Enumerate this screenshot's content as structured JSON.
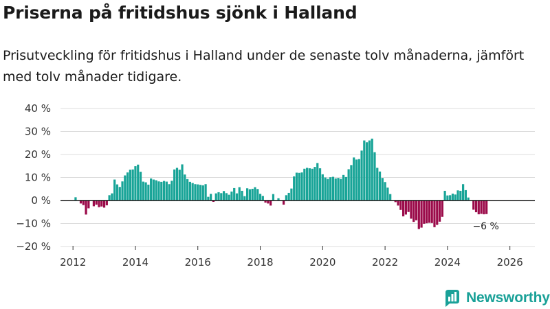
{
  "title": "Priserna på fritidshus sjönk i Halland",
  "subtitle": "Prisutveckling för fritidshus i Halland under de senaste tolv månaderna, jämfört med tolv månader tidigare.",
  "brand": "Newsworthy",
  "colors": {
    "positive": "#18a497",
    "negative": "#9b0b4a",
    "grid": "#dddddd",
    "text": "#333333",
    "brand": "#1aa198"
  },
  "chart_data": {
    "type": "bar",
    "title": "Priserna på fritidshus sjönk i Halland",
    "xlabel": "",
    "ylabel": "",
    "ylim": [
      -20,
      40
    ],
    "yticks": [
      40,
      30,
      20,
      10,
      0,
      -10,
      -20
    ],
    "ytick_labels": [
      "40 %",
      "30 %",
      "20 %",
      "10 %",
      "0 %",
      "−10 %",
      "−20 %"
    ],
    "xlim": [
      2011.6,
      2026.8
    ],
    "xticks": [
      2012,
      2014,
      2016,
      2018,
      2020,
      2022,
      2024,
      2026
    ],
    "xtick_labels": [
      "2012",
      "2014",
      "2016",
      "2018",
      "2020",
      "2022",
      "2024",
      "2026"
    ],
    "start_year": 2012,
    "start_month": 1,
    "values": [
      0,
      1.4,
      0,
      -1.3,
      -2.0,
      -6.1,
      -3.4,
      0,
      -2.5,
      -1.8,
      -2.9,
      -2.6,
      -3.1,
      -2.1,
      2.3,
      3.1,
      9.1,
      7.0,
      5.9,
      8.3,
      10.9,
      12.2,
      13.4,
      13.5,
      14.9,
      15.6,
      12.5,
      8.2,
      7.9,
      6.9,
      9.6,
      9.1,
      8.8,
      8.3,
      8.1,
      8.5,
      8.2,
      7.1,
      8.6,
      13.5,
      14.2,
      13.4,
      15.7,
      11.3,
      9.3,
      8.1,
      7.6,
      7.1,
      7.0,
      6.8,
      6.6,
      7.1,
      1.6,
      2.9,
      -0.6,
      3.1,
      3.6,
      3.2,
      4.1,
      3.2,
      2.5,
      3.9,
      5.4,
      3.1,
      5.8,
      4.2,
      1.9,
      5.3,
      4.9,
      5.1,
      5.8,
      5.0,
      2.9,
      2.0,
      -0.9,
      -1.3,
      -2.2,
      2.8,
      0,
      1.0,
      0,
      -1.8,
      2.3,
      3.3,
      5.2,
      10.5,
      12.1,
      12.0,
      12.2,
      13.8,
      14.2,
      14.0,
      13.8,
      14.6,
      16.3,
      14.0,
      11.4,
      10.0,
      9.4,
      10.1,
      10.3,
      9.6,
      9.8,
      9.4,
      11.1,
      10.2,
      13.6,
      15.4,
      18.7,
      17.8,
      18.0,
      21.7,
      26.1,
      25.3,
      26.1,
      26.9,
      21.0,
      14.2,
      12.6,
      9.8,
      8.0,
      5.6,
      2.8,
      0,
      -0.7,
      -2.2,
      -4.1,
      -6.9,
      -6.1,
      -5.0,
      -7.9,
      -9.3,
      -8.6,
      -12.4,
      -11.8,
      -10.1,
      -9.9,
      -9.7,
      -9.8,
      -11.6,
      -10.6,
      -9.2,
      -7.1,
      4.2,
      2.2,
      2.3,
      3.0,
      2.6,
      4.4,
      4.2,
      7.1,
      4.5,
      1.3,
      0,
      -4.0,
      -5.1,
      -6.0,
      -5.8,
      -6.0,
      -5.9
    ],
    "last_value_label": "−6 %"
  }
}
